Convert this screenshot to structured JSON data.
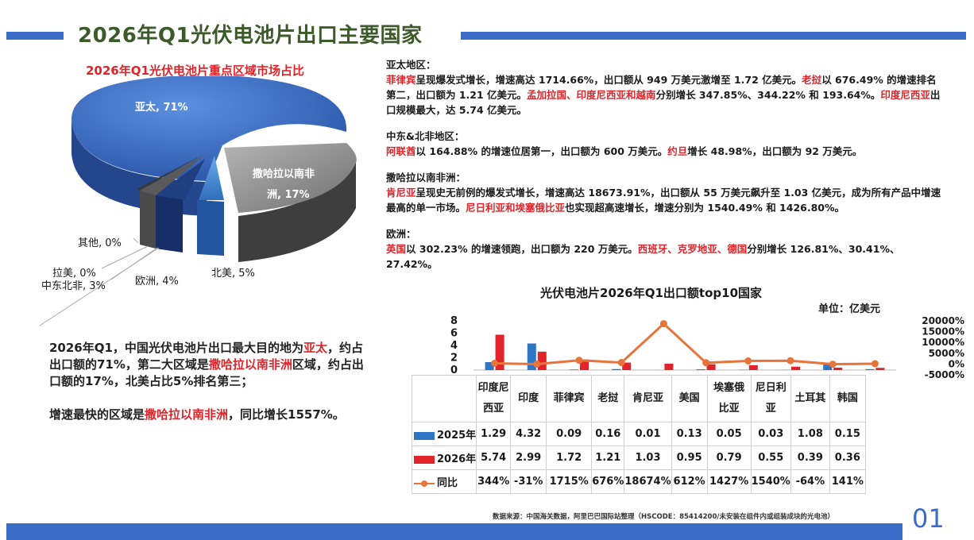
{
  "title": "2026年Q1光伏电池片出口主要国家",
  "pie": {
    "title": "2026年Q1光伏电池片重点区域市场占比",
    "labels": {
      "apac": "亚太, 71%",
      "ssa_1": "撒哈拉以南非",
      "ssa_2": "洲, 17%",
      "na": "北美, 5%",
      "eu": "欧洲, 4%",
      "mena": "中东北非, 3%",
      "latam": "拉美, 0%",
      "other": "其他, 0%"
    }
  },
  "summary": {
    "p1": [
      "2026年Q1，中国光伏电池片出口最大目的地为",
      "亚太",
      "，约占出口额的71%，第二大区域是",
      "撒哈拉以南非洲",
      "区域，约占出口额的17%，北美占比5%排名第三；"
    ],
    "p2": [
      "增速最快的区域是",
      "撒哈拉以南非洲",
      "，同比增长1557%。"
    ]
  },
  "regions": {
    "apac": {
      "head": "亚太地区：",
      "body": [
        "菲律宾",
        "呈现爆发式增长，增速高达 1714.66%，出口额从 949 万美元激增至 1.72 亿美元。",
        "老挝",
        "以 676.49% 的增速排名第二，出口额为 1.21 亿美元。",
        "孟加拉国、印度尼西亚和越南",
        "分别增长 347.85%、344.22% 和 193.64%。",
        "印度尼西亚",
        "出口规模最大，达 5.74 亿美元。"
      ]
    },
    "mena": {
      "head": "中东&北非地区：",
      "body": [
        "阿联酋",
        "以 164.88% 的增速位居第一，出口额为 600 万美元。",
        "约旦",
        "增长 48.98%，出口额为 92 万美元。"
      ]
    },
    "ssa": {
      "head": "撒哈拉以南非洲：",
      "body": [
        "肯尼亚",
        "呈现史无前例的爆发式增长，增速高达 18673.91%，出口额从 55 万美元飙升至 1.03 亿美元，成为所有产品中增速最高的单一市场。",
        "尼日利亚和埃塞俄比亚",
        "也实现超高速增长，增速分别为 1540.49% 和 1426.80%。"
      ]
    },
    "eu": {
      "head": "欧洲：",
      "body": [
        "英国",
        "以 302.23% 的增速领跑，出口额为 220 万美元。",
        "西班牙、克罗地亚、德国",
        "分别增长 126.81%、30.41%、27.42%。"
      ]
    }
  },
  "unit": "单位：亿美元",
  "source": "数据来源：中国海关数据，阿里巴巴国际站整理（HSCODE：85414200/未安装在组件内或组装成块的光电池）",
  "page_number": "01",
  "colors": {
    "s2025": "#2e75c5",
    "s2026": "#e0242a",
    "yoy": "#e8743b",
    "title_green": "#3d5a2a",
    "bar_blue": "#3b6cc7"
  },
  "chart_data": [
    {
      "type": "pie",
      "title": "2026年Q1光伏电池片重点区域市场占比",
      "categories": [
        "亚太",
        "撒哈拉以南非洲",
        "北美",
        "欧洲",
        "中东北非",
        "拉美",
        "其他"
      ],
      "values": [
        71,
        17,
        5,
        4,
        3,
        0,
        0
      ],
      "colors": [
        "#3a6cc8",
        "#8c8c8c",
        "#4a8fd6",
        "#1f3f80",
        "#5a5a5a",
        "#3a3a3a",
        "#2a2a2a"
      ]
    },
    {
      "type": "bar",
      "title": "光伏电池片2026年Q1出口额top10国家",
      "categories": [
        "印度尼西亚",
        "印度",
        "菲律宾",
        "老挝",
        "肯尼亚",
        "美国",
        "埃塞俄比亚",
        "尼日利亚",
        "土耳其",
        "韩国"
      ],
      "category_lines": [
        [
          "印度尼",
          "西亚"
        ],
        [
          "印度"
        ],
        [
          "菲律宾"
        ],
        [
          "老挝"
        ],
        [
          "肯尼亚"
        ],
        [
          "美国"
        ],
        [
          "埃塞俄",
          "比亚"
        ],
        [
          "尼日利",
          "亚"
        ],
        [
          "土耳其"
        ],
        [
          "韩国"
        ]
      ],
      "series": [
        {
          "name": "2025年",
          "values": [
            1.29,
            4.32,
            0.09,
            0.16,
            0.01,
            0.13,
            0.05,
            0.03,
            1.08,
            0.15
          ]
        },
        {
          "name": "2026年",
          "values": [
            5.74,
            2.99,
            1.72,
            1.21,
            1.03,
            0.95,
            0.79,
            0.55,
            0.39,
            0.36
          ]
        },
        {
          "name": "同比",
          "axis": "right",
          "values": [
            344,
            -31,
            1715,
            676,
            18674,
            612,
            1427,
            1540,
            -64,
            141
          ],
          "labels": [
            "344%",
            "-31%",
            "1715%",
            "676%",
            "18674%",
            "612%",
            "1427%",
            "1540%",
            "-64%",
            "141%"
          ]
        }
      ],
      "ylim": [
        0,
        8
      ],
      "yticks": [
        "8",
        "6",
        "4",
        "2",
        "0"
      ],
      "y2lim": [
        -5000,
        20000
      ],
      "y2ticks": [
        "20000%",
        "15000%",
        "10000%",
        "5000%",
        "0%",
        "-5000%"
      ],
      "ylabel": "单位：亿美元"
    }
  ]
}
